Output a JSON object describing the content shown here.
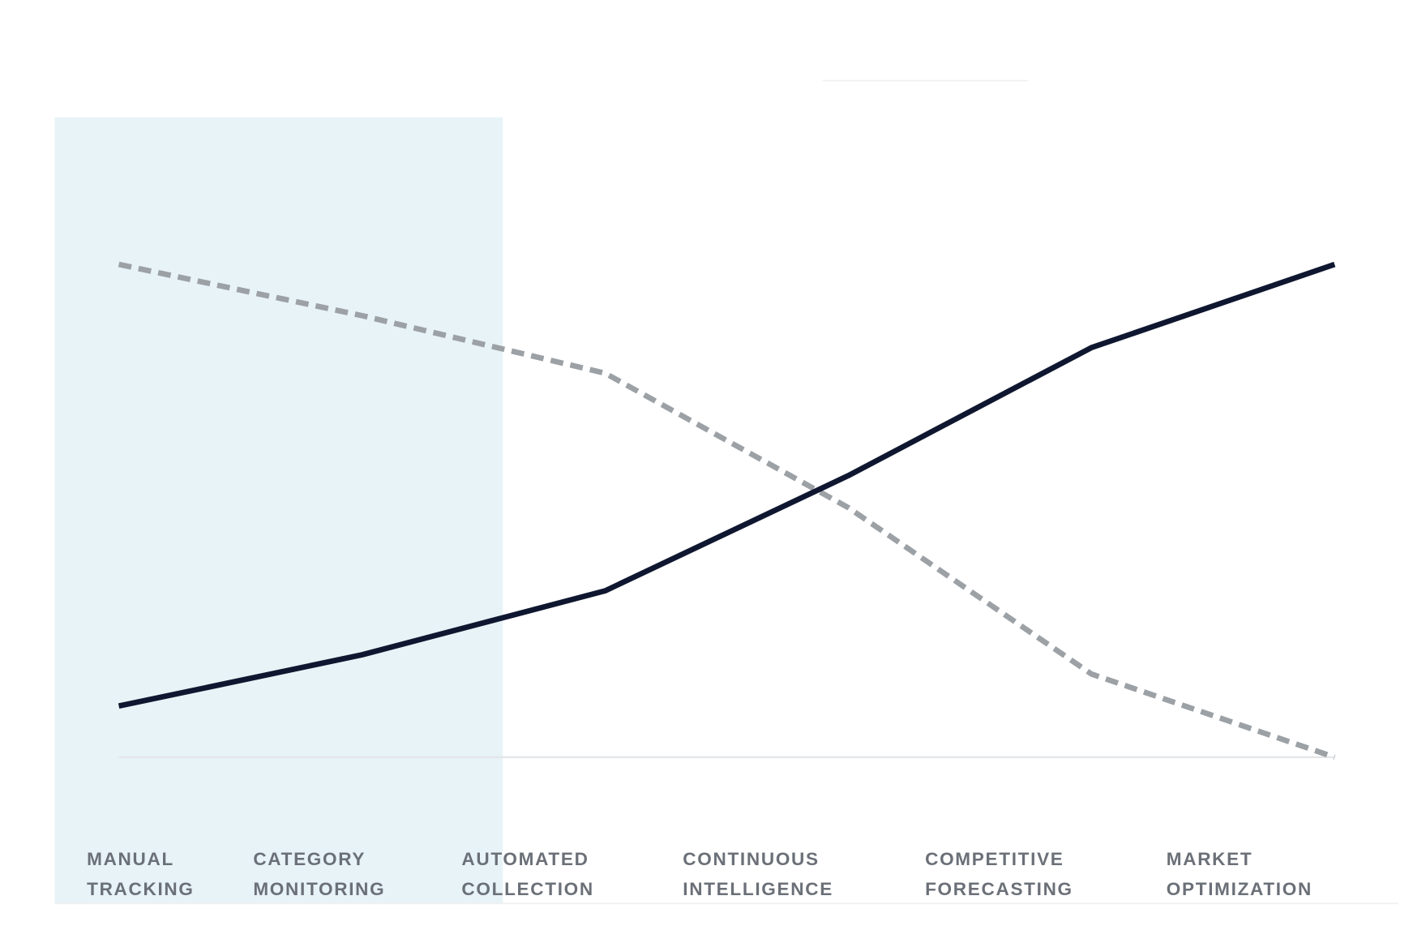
{
  "chart_data": {
    "type": "line",
    "categories": [
      [
        "MANUAL",
        "TRACKING"
      ],
      [
        "CATEGORY",
        "MONITORING"
      ],
      [
        "AUTOMATED",
        "COLLECTION"
      ],
      [
        "CONTINUOUS",
        "INTELLIGENCE"
      ],
      [
        "COMPETITIVE",
        "FORECASTING"
      ],
      [
        "MARKET",
        "OPTIMIZATION"
      ]
    ],
    "series": [
      {
        "color": "#0f1730",
        "line_style": "solid",
        "values": [
          8,
          16,
          26,
          44,
          64,
          77
        ]
      },
      {
        "color": "#9ca1a6",
        "line_style": "dashed",
        "values": [
          77,
          69,
          60,
          39,
          13,
          0
        ]
      }
    ],
    "ylim": [
      0,
      100
    ]
  }
}
